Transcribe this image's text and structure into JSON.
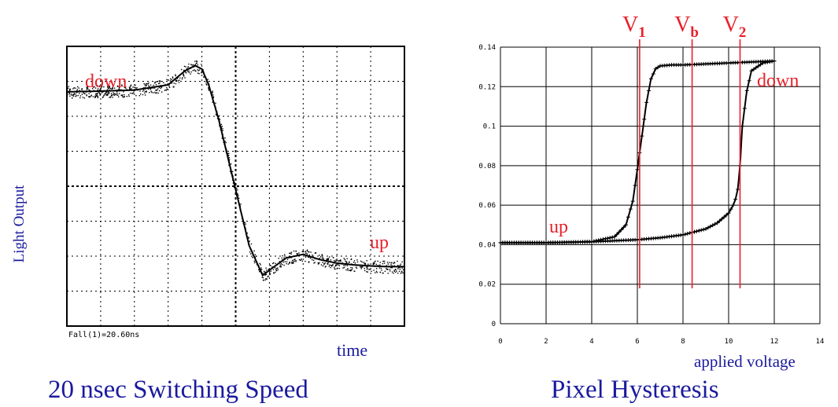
{
  "colors": {
    "annotation": "#e8202a",
    "label": "#1a1a9e",
    "trace": "#000000",
    "grid": "#000000",
    "vline": "#e8202a"
  },
  "left_panel": {
    "ylabel": "Light Output",
    "xlabel": "time",
    "caption": "20 nsec Switching Speed",
    "readout": "Fall(1)=20.60ns",
    "labels": {
      "down": "down",
      "up": "up"
    }
  },
  "right_panel": {
    "xlabel": "applied voltage",
    "caption": "Pixel Hysteresis",
    "labels": {
      "down": "down",
      "up": "up"
    },
    "vlines": [
      {
        "name": "V1",
        "main": "V",
        "sub": "1",
        "x": 6.1
      },
      {
        "name": "Vb",
        "main": "V",
        "sub": "b",
        "x": 8.4
      },
      {
        "name": "V2",
        "main": "V",
        "sub": "2",
        "x": 10.5
      }
    ]
  },
  "chart_data": [
    {
      "type": "line",
      "title": "20 nsec Switching Speed",
      "xlabel": "time",
      "ylabel": "Light Output",
      "grid": true,
      "grid_divisions": {
        "x": 10,
        "y": 8
      },
      "xlim": [
        0,
        10
      ],
      "ylim": [
        0,
        8
      ],
      "series": [
        {
          "name": "",
          "x": [
            0,
            1,
            2,
            3,
            3.5,
            3.8,
            4.0,
            4.2,
            4.5,
            5.0,
            5.4,
            5.8,
            6.0,
            6.5,
            7.0,
            7.5,
            8.0,
            8.5,
            9.0,
            9.5,
            10
          ],
          "y": [
            6.7,
            6.72,
            6.75,
            6.9,
            7.3,
            7.45,
            7.35,
            6.9,
            5.9,
            3.9,
            2.3,
            1.45,
            1.6,
            1.95,
            2.05,
            1.9,
            1.8,
            1.75,
            1.72,
            1.7,
            1.7
          ]
        }
      ]
    },
    {
      "type": "line",
      "title": "Pixel Hysteresis",
      "xlabel": "applied voltage",
      "ylabel": "",
      "grid": true,
      "xlim": [
        0,
        14
      ],
      "ylim": [
        0,
        0.14
      ],
      "xticks": [
        "0",
        "2",
        "4",
        "6",
        "8",
        "10",
        "12",
        "14"
      ],
      "yticks": [
        "0",
        "0.02",
        "0.04",
        "0.06",
        "0.08",
        "0.1",
        "0.12",
        "0.14"
      ],
      "series": [
        {
          "name": "up",
          "x": [
            0,
            2,
            4,
            5,
            5.5,
            5.8,
            6.0,
            6.2,
            6.4,
            6.6,
            6.8,
            7.0,
            7.5,
            8,
            9,
            10,
            11,
            12
          ],
          "y": [
            0.041,
            0.041,
            0.0415,
            0.044,
            0.05,
            0.062,
            0.078,
            0.095,
            0.112,
            0.124,
            0.129,
            0.1305,
            0.131,
            0.131,
            0.1315,
            0.132,
            0.1325,
            0.133
          ]
        },
        {
          "name": "down",
          "x": [
            12,
            11.5,
            11,
            10.8,
            10.6,
            10.5,
            10.4,
            10.3,
            10.2,
            10.0,
            9.5,
            9,
            8.5,
            8,
            7,
            6,
            5,
            4,
            2,
            0
          ],
          "y": [
            0.133,
            0.132,
            0.128,
            0.118,
            0.1,
            0.08,
            0.068,
            0.063,
            0.06,
            0.056,
            0.051,
            0.048,
            0.0465,
            0.045,
            0.0435,
            0.0425,
            0.042,
            0.0415,
            0.041,
            0.041
          ]
        }
      ]
    }
  ]
}
